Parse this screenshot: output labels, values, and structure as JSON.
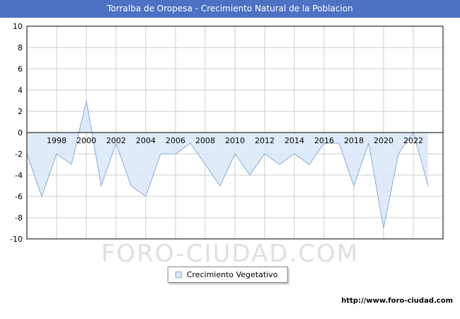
{
  "titlebar": {
    "title": "Torralba de Oropesa - Crecimiento Natural de la Poblacion",
    "bg_color": "#4d72c4"
  },
  "watermark": "FORO-CIUDAD.COM",
  "legend": {
    "label": "Crecimiento Vegetativo"
  },
  "footer": {
    "url": "http://www.foro-ciudad.com"
  },
  "chart_data": {
    "type": "area",
    "title": "Torralba de Oropesa - Crecimiento Natural de la Poblacion",
    "x": [
      1996,
      1997,
      1998,
      1999,
      2000,
      2001,
      2002,
      2003,
      2004,
      2005,
      2006,
      2007,
      2008,
      2009,
      2010,
      2011,
      2012,
      2013,
      2014,
      2015,
      2016,
      2017,
      2018,
      2019,
      2020,
      2021,
      2022,
      2023
    ],
    "series": [
      {
        "name": "Crecimiento Vegetativo",
        "values": [
          -2,
          -6,
          -2,
          -3,
          3,
          -5,
          -1,
          -5,
          -6,
          -2,
          -2,
          -1,
          -3,
          -5,
          -2,
          -4,
          -2,
          -3,
          -2,
          -3,
          -1,
          -1,
          -5,
          -1,
          -9,
          -2,
          0,
          -5
        ]
      }
    ],
    "xlim": [
      1996,
      2024
    ],
    "ylim": [
      -10,
      10
    ],
    "ytick_step": 2,
    "xticks": [
      1998,
      2000,
      2002,
      2004,
      2006,
      2008,
      2010,
      2012,
      2014,
      2016,
      2018,
      2020,
      2022
    ],
    "grid": true,
    "baseline": 0,
    "legend_position": "bottom",
    "colors": {
      "area_fill": "#d9e7f8",
      "line": "#8aabd8",
      "grid": "#cccccc",
      "axis": "#000000",
      "tick_text": "#000000"
    }
  }
}
